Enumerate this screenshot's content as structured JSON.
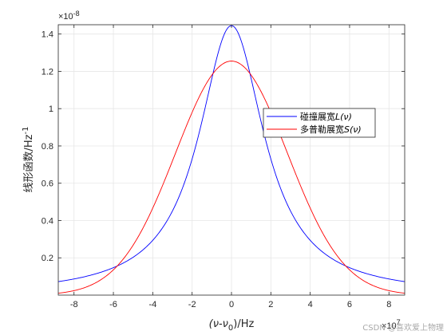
{
  "chart_data": {
    "type": "line",
    "xlabel": "(ν-ν",
    "xlabel_sub": "0",
    "xlabel_tail": ")/Hz",
    "ylabel": "线形函数/Hz",
    "ylabel_sup": "-1",
    "x_exponent_label": "×10",
    "x_exponent": "7",
    "y_exponent_label": "×10",
    "y_exponent": "-8",
    "xlim": [
      -88000000.0,
      88000000.0
    ],
    "ylim": [
      0,
      1.45e-08
    ],
    "xticks": [
      -8,
      -6,
      -4,
      -2,
      0,
      2,
      4,
      6,
      8
    ],
    "yticks": [
      0.2,
      0.4,
      0.6,
      0.8,
      1,
      1.2,
      1.4
    ],
    "grid": true,
    "legend_position": "right-middle",
    "series": [
      {
        "name": "碰撞展宽L(ν)",
        "name_prefix": "碰撞展宽",
        "name_func": "L(ν)",
        "color": "#0000ff",
        "model": "lorentzian",
        "peak": 1.445e-08,
        "x": [
          -88000000.0,
          -60000000.0,
          -40000000.0,
          -20000000.0,
          0,
          20000000.0,
          40000000.0,
          60000000.0,
          88000000.0
        ],
        "values": [
          8.5e-10,
          1.6e-09,
          3.1e-09,
          7.3e-09,
          1.445e-08,
          7.3e-09,
          3.1e-09,
          1.6e-09,
          8.5e-10
        ]
      },
      {
        "name": "多普勒展宽S(ν)",
        "name_prefix": "多普勒展宽",
        "name_func": "S(ν)",
        "color": "#ff0000",
        "model": "gaussian",
        "peak": 1.255e-08,
        "x": [
          -88000000.0,
          -60000000.0,
          -40000000.0,
          -20000000.0,
          0,
          20000000.0,
          40000000.0,
          60000000.0,
          88000000.0
        ],
        "values": [
          2.8e-10,
          1.8e-09,
          5.1e-09,
          9.8e-09,
          1.255e-08,
          9.8e-09,
          5.1e-09,
          1.8e-09,
          2.8e-10
        ]
      }
    ]
  },
  "watermark": "CSDN @喜欢爱上物理"
}
